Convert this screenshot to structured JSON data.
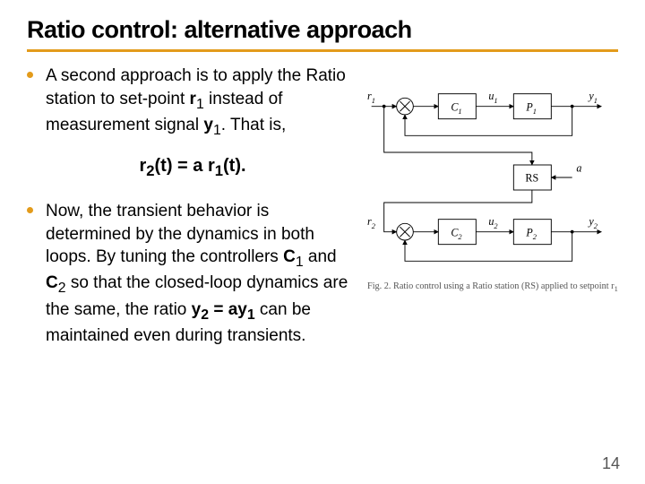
{
  "title": {
    "text": "Ratio control: alternative approach",
    "fontsize": 27,
    "color": "#000000"
  },
  "rule": {
    "color": "#e39b1b",
    "thickness": 3
  },
  "bullets": {
    "dot_color": "#e39b1b",
    "text_color": "#000000",
    "fontsize": 19,
    "items": [
      "A second approach is to apply the Ratio station to set-point <b>r</b><sub>1</sub> instead of measurement signal <b>y</b><sub>1</sub>. That is,",
      "Now, the transient behavior is determined by the dynamics in both loops. By tuning the controllers <b>C</b><sub>1</sub> and <b>C</b><sub>2</sub> so that the closed-loop dynamics are the same, the ratio <b>y<sub>2</sub> = ay<sub>1</sub></b> can be maintained even during transients."
    ]
  },
  "equation": {
    "text": "r<sub>2</sub>(t) = a r<sub>1</sub>(t).",
    "fontsize": 20
  },
  "diagram": {
    "blocks": {
      "C1": "C",
      "C1_sub": "1",
      "P1": "P",
      "P1_sub": "1",
      "RS": "RS",
      "C2": "C",
      "C2_sub": "2",
      "P2": "P",
      "P2_sub": "2"
    },
    "signals": {
      "r1": "r",
      "r1_sub": "1",
      "u1": "u",
      "u1_sub": "1",
      "y1": "y",
      "y1_sub": "1",
      "a": "a",
      "r2": "r",
      "r2_sub": "2",
      "u2": "u",
      "u2_sub": "2",
      "y2": "y",
      "y2_sub": "2"
    },
    "caption": "Fig. 2.  Ratio control using a Ratio station (RS) applied to setpoint r",
    "caption_sub": "1",
    "caption_end": "."
  },
  "pagenum": {
    "value": "14",
    "fontsize": 18,
    "color": "#555555"
  }
}
